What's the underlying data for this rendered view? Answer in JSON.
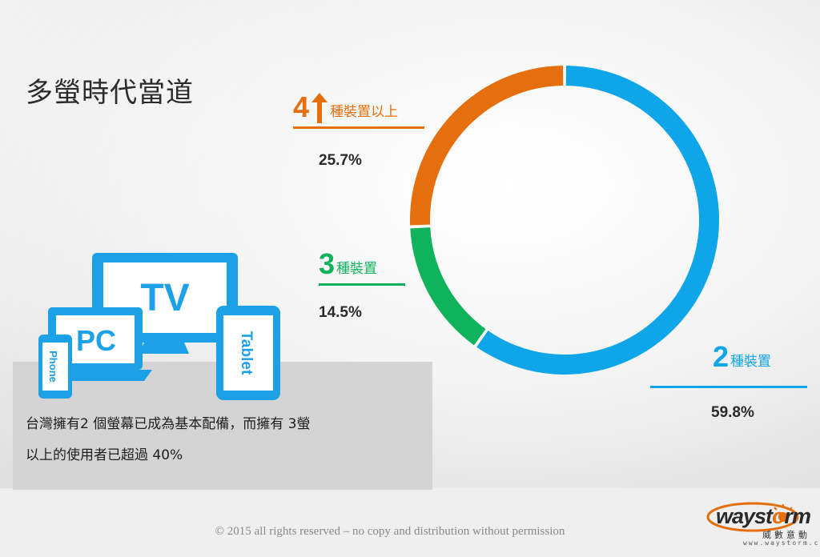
{
  "slide": {
    "title": "多螢時代當道",
    "caption_line1": "台灣擁有2 個螢幕已成為基本配備，而擁有 3螢",
    "caption_line2": "以上的使用者已超過 40%",
    "copyright": "© 2015 all rights reserved – no copy and distribution without permission"
  },
  "device_icons": {
    "tv": "TV",
    "pc": "PC",
    "phone": "Phone",
    "tablet": "Tablet"
  },
  "chart_data": {
    "type": "pie",
    "donut": true,
    "slices": [
      {
        "label_num": "2",
        "label_unit": "種裝置",
        "value": 59.8,
        "display": "59.8%",
        "color": "#0ea5e9"
      },
      {
        "label_num": "3",
        "label_unit": "種裝置",
        "value": 14.5,
        "display": "14.5%",
        "color": "#10b35c"
      },
      {
        "label_num": "4",
        "label_unit": "種裝置以上",
        "value": 25.7,
        "display": "25.7%",
        "color": "#e56f0c"
      }
    ],
    "legend": "none"
  },
  "colors": {
    "blue": "#0ea5e9",
    "green": "#10b35c",
    "orange": "#e56f0c",
    "icon_blue": "#1da1e6"
  },
  "logo": {
    "word_a": "wayst",
    "word_b": "rm",
    "sub": "威數意動",
    "url": "www.waystorm.com"
  }
}
